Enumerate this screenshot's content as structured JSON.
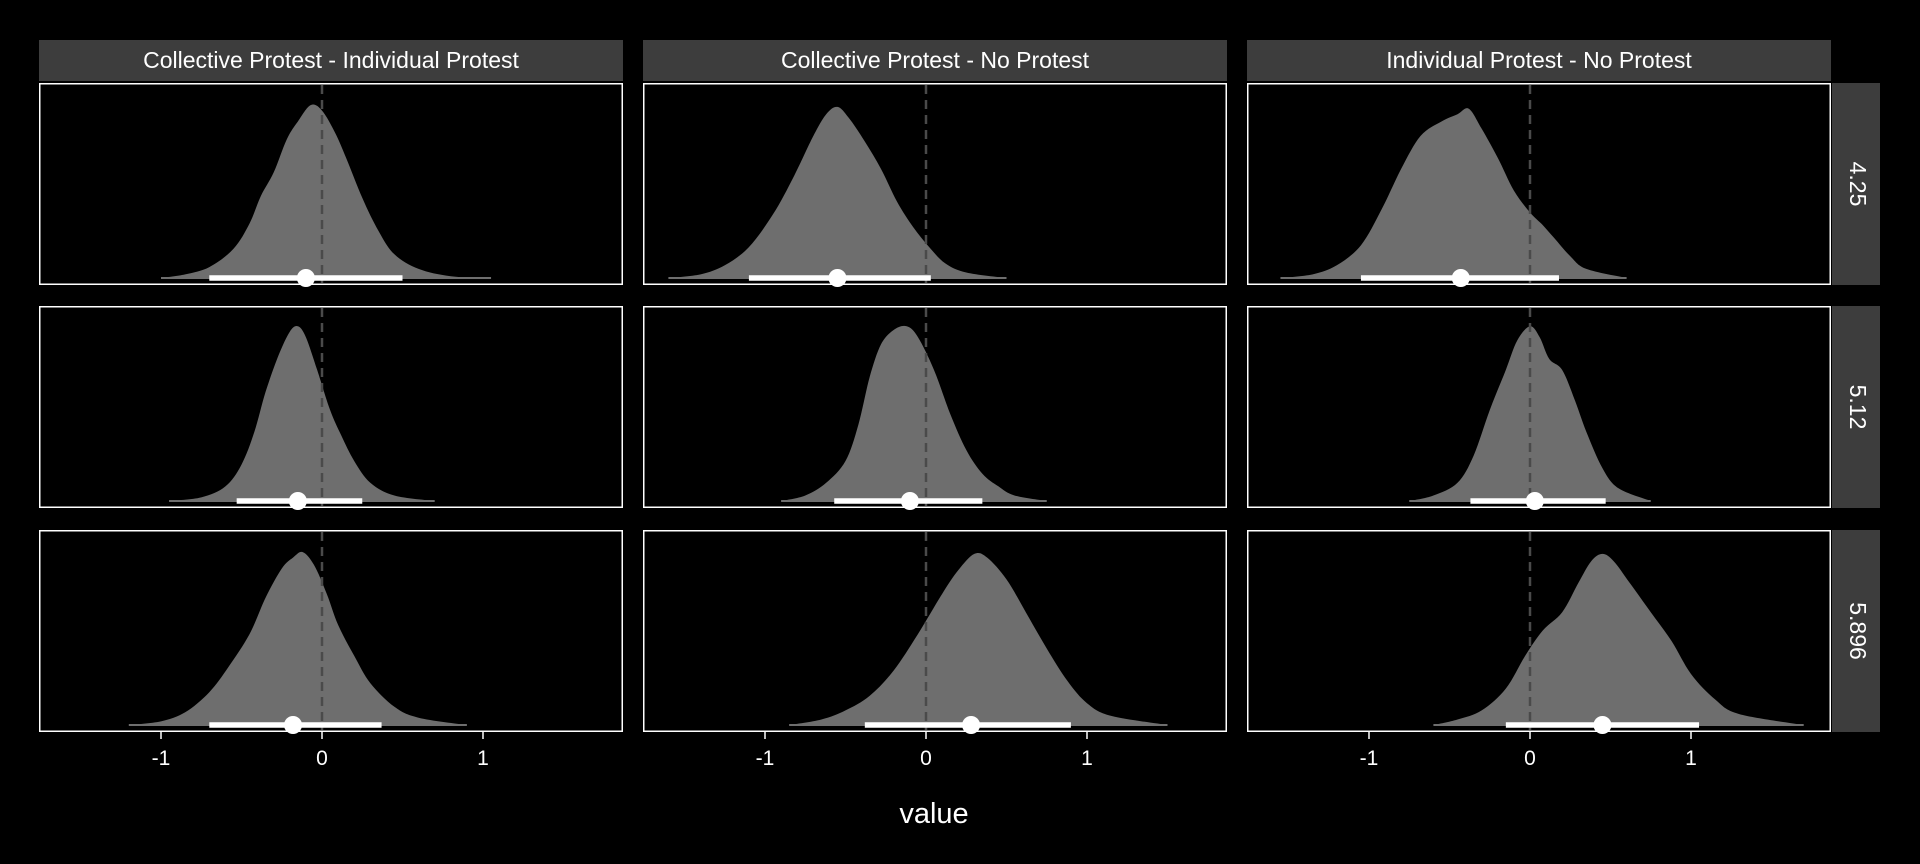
{
  "chart_data": {
    "type": "density",
    "xlabel": "value",
    "ylabel": "",
    "xlim": [
      -1.75,
      1.88
    ],
    "x_ticks": [
      -1,
      0,
      1
    ],
    "x_tick_labels": [
      "-1",
      "0",
      "1"
    ],
    "reference_line_x": 0,
    "grid": false,
    "colors": {
      "background": "#000000",
      "density_fill": "#6e6e6e",
      "strip_fill": "#3d3d3d",
      "panel_border": "#ffffff",
      "reference_line": "#4a4a4a",
      "interval": "#ffffff"
    },
    "columns": [
      "Collective Protest - Individual Protest",
      "Collective Protest - No Protest",
      "Individual Protest - No Protest"
    ],
    "rows": [
      "4.25",
      "5.12",
      "5.896"
    ],
    "panels": [
      {
        "column": 0,
        "row": 0,
        "mode": -0.07,
        "point": -0.1,
        "interval": [
          -0.7,
          0.5
        ],
        "range": [
          -1.0,
          1.05
        ],
        "density": [
          [
            -1.0,
            0
          ],
          [
            -0.85,
            0.02
          ],
          [
            -0.7,
            0.06
          ],
          [
            -0.55,
            0.16
          ],
          [
            -0.45,
            0.3
          ],
          [
            -0.38,
            0.45
          ],
          [
            -0.3,
            0.58
          ],
          [
            -0.22,
            0.76
          ],
          [
            -0.15,
            0.86
          ],
          [
            -0.07,
            0.95
          ],
          [
            0.0,
            0.92
          ],
          [
            0.08,
            0.8
          ],
          [
            0.15,
            0.66
          ],
          [
            0.25,
            0.44
          ],
          [
            0.35,
            0.26
          ],
          [
            0.45,
            0.13
          ],
          [
            0.6,
            0.05
          ],
          [
            0.8,
            0.01
          ],
          [
            1.05,
            0
          ]
        ]
      },
      {
        "column": 1,
        "row": 0,
        "mode": -0.55,
        "point": -0.55,
        "interval": [
          -1.1,
          0.03
        ],
        "range": [
          -1.6,
          0.5
        ],
        "density": [
          [
            -1.6,
            0
          ],
          [
            -1.4,
            0.02
          ],
          [
            -1.25,
            0.07
          ],
          [
            -1.1,
            0.17
          ],
          [
            -0.95,
            0.35
          ],
          [
            -0.82,
            0.56
          ],
          [
            -0.7,
            0.78
          ],
          [
            -0.62,
            0.9
          ],
          [
            -0.55,
            0.94
          ],
          [
            -0.48,
            0.88
          ],
          [
            -0.38,
            0.75
          ],
          [
            -0.28,
            0.6
          ],
          [
            -0.18,
            0.42
          ],
          [
            -0.08,
            0.28
          ],
          [
            0.02,
            0.17
          ],
          [
            0.12,
            0.08
          ],
          [
            0.25,
            0.03
          ],
          [
            0.5,
            0
          ]
        ]
      },
      {
        "column": 2,
        "row": 0,
        "mode": -0.4,
        "point": -0.43,
        "interval": [
          -1.05,
          0.18
        ],
        "range": [
          -1.55,
          0.6
        ],
        "density": [
          [
            -1.55,
            0
          ],
          [
            -1.35,
            0.02
          ],
          [
            -1.2,
            0.07
          ],
          [
            -1.05,
            0.18
          ],
          [
            -0.92,
            0.38
          ],
          [
            -0.8,
            0.6
          ],
          [
            -0.68,
            0.78
          ],
          [
            -0.55,
            0.86
          ],
          [
            -0.45,
            0.9
          ],
          [
            -0.38,
            0.93
          ],
          [
            -0.3,
            0.82
          ],
          [
            -0.2,
            0.66
          ],
          [
            -0.1,
            0.48
          ],
          [
            0.0,
            0.36
          ],
          [
            0.08,
            0.29
          ],
          [
            0.15,
            0.22
          ],
          [
            0.25,
            0.12
          ],
          [
            0.35,
            0.05
          ],
          [
            0.6,
            0
          ]
        ]
      },
      {
        "column": 0,
        "row": 1,
        "mode": -0.15,
        "point": -0.15,
        "interval": [
          -0.53,
          0.25
        ],
        "range": [
          -0.95,
          0.7
        ],
        "density": [
          [
            -0.95,
            0
          ],
          [
            -0.75,
            0.02
          ],
          [
            -0.6,
            0.08
          ],
          [
            -0.5,
            0.2
          ],
          [
            -0.42,
            0.38
          ],
          [
            -0.35,
            0.6
          ],
          [
            -0.27,
            0.8
          ],
          [
            -0.2,
            0.93
          ],
          [
            -0.15,
            0.96
          ],
          [
            -0.1,
            0.9
          ],
          [
            -0.03,
            0.72
          ],
          [
            0.05,
            0.5
          ],
          [
            0.12,
            0.36
          ],
          [
            0.2,
            0.22
          ],
          [
            0.3,
            0.1
          ],
          [
            0.45,
            0.03
          ],
          [
            0.7,
            0
          ]
        ]
      },
      {
        "column": 1,
        "row": 1,
        "mode": -0.12,
        "point": -0.1,
        "interval": [
          -0.57,
          0.35
        ],
        "range": [
          -0.9,
          0.75
        ],
        "density": [
          [
            -0.9,
            0
          ],
          [
            -0.75,
            0.03
          ],
          [
            -0.62,
            0.1
          ],
          [
            -0.5,
            0.22
          ],
          [
            -0.42,
            0.42
          ],
          [
            -0.35,
            0.68
          ],
          [
            -0.28,
            0.86
          ],
          [
            -0.2,
            0.94
          ],
          [
            -0.12,
            0.96
          ],
          [
            -0.05,
            0.9
          ],
          [
            0.05,
            0.72
          ],
          [
            0.15,
            0.48
          ],
          [
            0.25,
            0.28
          ],
          [
            0.35,
            0.15
          ],
          [
            0.45,
            0.08
          ],
          [
            0.55,
            0.03
          ],
          [
            0.75,
            0
          ]
        ]
      },
      {
        "column": 2,
        "row": 1,
        "mode": 0.0,
        "point": 0.03,
        "interval": [
          -0.37,
          0.47
        ],
        "range": [
          -0.75,
          0.75
        ],
        "density": [
          [
            -0.75,
            0
          ],
          [
            -0.6,
            0.03
          ],
          [
            -0.45,
            0.1
          ],
          [
            -0.35,
            0.25
          ],
          [
            -0.25,
            0.5
          ],
          [
            -0.15,
            0.72
          ],
          [
            -0.08,
            0.88
          ],
          [
            0.0,
            0.96
          ],
          [
            0.06,
            0.9
          ],
          [
            0.12,
            0.78
          ],
          [
            0.2,
            0.72
          ],
          [
            0.28,
            0.55
          ],
          [
            0.35,
            0.38
          ],
          [
            0.45,
            0.18
          ],
          [
            0.55,
            0.07
          ],
          [
            0.75,
            0
          ]
        ]
      },
      {
        "column": 0,
        "row": 2,
        "mode": -0.13,
        "point": -0.18,
        "interval": [
          -0.7,
          0.37
        ],
        "range": [
          -1.2,
          0.9
        ],
        "density": [
          [
            -1.2,
            0
          ],
          [
            -1.0,
            0.02
          ],
          [
            -0.85,
            0.07
          ],
          [
            -0.7,
            0.18
          ],
          [
            -0.58,
            0.32
          ],
          [
            -0.45,
            0.5
          ],
          [
            -0.35,
            0.7
          ],
          [
            -0.25,
            0.86
          ],
          [
            -0.18,
            0.92
          ],
          [
            -0.12,
            0.95
          ],
          [
            -0.05,
            0.88
          ],
          [
            0.03,
            0.72
          ],
          [
            0.1,
            0.55
          ],
          [
            0.2,
            0.38
          ],
          [
            0.3,
            0.23
          ],
          [
            0.45,
            0.1
          ],
          [
            0.6,
            0.04
          ],
          [
            0.9,
            0
          ]
        ]
      },
      {
        "column": 1,
        "row": 2,
        "mode": 0.3,
        "point": 0.28,
        "interval": [
          -0.38,
          0.9
        ],
        "range": [
          -0.85,
          1.5
        ],
        "density": [
          [
            -0.85,
            0
          ],
          [
            -0.65,
            0.03
          ],
          [
            -0.5,
            0.08
          ],
          [
            -0.35,
            0.16
          ],
          [
            -0.2,
            0.3
          ],
          [
            -0.05,
            0.5
          ],
          [
            0.1,
            0.72
          ],
          [
            0.2,
            0.85
          ],
          [
            0.3,
            0.94
          ],
          [
            0.38,
            0.92
          ],
          [
            0.5,
            0.8
          ],
          [
            0.62,
            0.62
          ],
          [
            0.75,
            0.42
          ],
          [
            0.88,
            0.24
          ],
          [
            1.0,
            0.12
          ],
          [
            1.15,
            0.05
          ],
          [
            1.5,
            0
          ]
        ]
      },
      {
        "column": 2,
        "row": 2,
        "mode": 0.45,
        "point": 0.45,
        "interval": [
          -0.15,
          1.05
        ],
        "range": [
          -0.6,
          1.7
        ],
        "density": [
          [
            -0.6,
            0
          ],
          [
            -0.45,
            0.03
          ],
          [
            -0.3,
            0.08
          ],
          [
            -0.15,
            0.2
          ],
          [
            -0.03,
            0.38
          ],
          [
            0.08,
            0.52
          ],
          [
            0.2,
            0.62
          ],
          [
            0.3,
            0.78
          ],
          [
            0.38,
            0.9
          ],
          [
            0.45,
            0.94
          ],
          [
            0.52,
            0.9
          ],
          [
            0.62,
            0.78
          ],
          [
            0.75,
            0.62
          ],
          [
            0.88,
            0.46
          ],
          [
            1.0,
            0.28
          ],
          [
            1.15,
            0.14
          ],
          [
            1.3,
            0.06
          ],
          [
            1.7,
            0
          ]
        ]
      }
    ]
  }
}
